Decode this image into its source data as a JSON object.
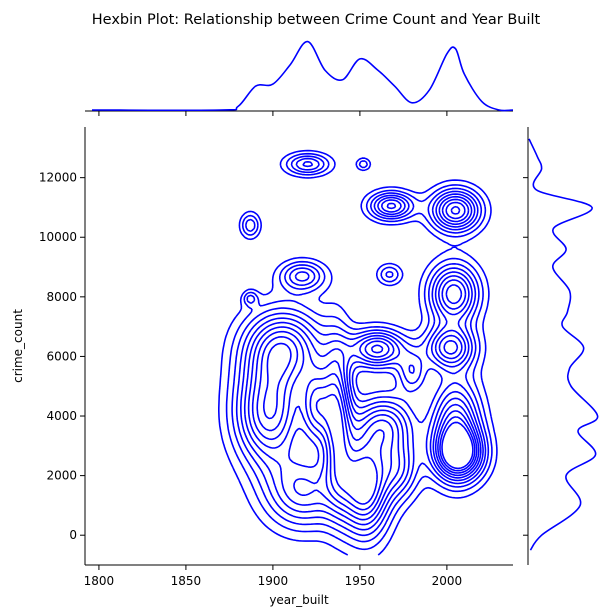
{
  "chart_data": {
    "type": "kde-joint",
    "title": "Hexbin Plot: Relationship between Crime Count and Year Built",
    "xlabel": "year_built",
    "ylabel": "crime_count",
    "xlim": [
      1792,
      2038
    ],
    "ylim": [
      -1000,
      13700
    ],
    "xticks": [
      "1800",
      "1850",
      "1900",
      "1950",
      "2000"
    ],
    "yticks": [
      "0",
      "2000",
      "4000",
      "6000",
      "8000",
      "10000",
      "12000"
    ],
    "color": "#0000ff",
    "density_peaks": [
      {
        "x": 1920,
        "y": 12450
      },
      {
        "x": 1952,
        "y": 12450
      },
      {
        "x": 1887,
        "y": 10400
      },
      {
        "x": 1968,
        "y": 11050
      },
      {
        "x": 2005,
        "y": 10900
      },
      {
        "x": 1917,
        "y": 8700
      },
      {
        "x": 1887,
        "y": 7950
      },
      {
        "x": 1967,
        "y": 8750
      },
      {
        "x": 2004,
        "y": 8100
      },
      {
        "x": 1906,
        "y": 6300
      },
      {
        "x": 1960,
        "y": 6250
      },
      {
        "x": 1980,
        "y": 5450
      },
      {
        "x": 2002,
        "y": 6300
      },
      {
        "x": 1898,
        "y": 4100
      },
      {
        "x": 1925,
        "y": 4300
      },
      {
        "x": 1937,
        "y": 4000
      },
      {
        "x": 1965,
        "y": 3700
      },
      {
        "x": 2005,
        "y": 3700
      },
      {
        "x": 2007,
        "y": 2700
      },
      {
        "x": 1918,
        "y": 1500
      },
      {
        "x": 1953,
        "y": 1700
      },
      {
        "x": 1973,
        "y": 2200
      }
    ],
    "marginal_x": {
      "x": [
        1870,
        1880,
        1890,
        1900,
        1910,
        1920,
        1930,
        1940,
        1950,
        1960,
        1970,
        1980,
        1990,
        2000,
        2005,
        2010,
        2020,
        2030
      ],
      "density": [
        0,
        0.05,
        0.33,
        0.36,
        0.63,
        0.95,
        0.55,
        0.42,
        0.71,
        0.56,
        0.33,
        0.1,
        0.28,
        0.78,
        0.85,
        0.5,
        0.12,
        0
      ]
    },
    "marginal_y": {
      "y": [
        -500,
        0,
        1000,
        2000,
        2700,
        3500,
        4000,
        5000,
        5600,
        6300,
        7000,
        7500,
        8200,
        9000,
        9600,
        10300,
        11000,
        11600,
        12300,
        12700,
        13300
      ],
      "density": [
        0.02,
        0.18,
        0.73,
        0.53,
        0.95,
        0.7,
        0.98,
        0.6,
        0.58,
        0.78,
        0.48,
        0.55,
        0.58,
        0.34,
        0.53,
        0.35,
        0.9,
        0.1,
        0.18,
        0.12,
        0
      ]
    }
  }
}
